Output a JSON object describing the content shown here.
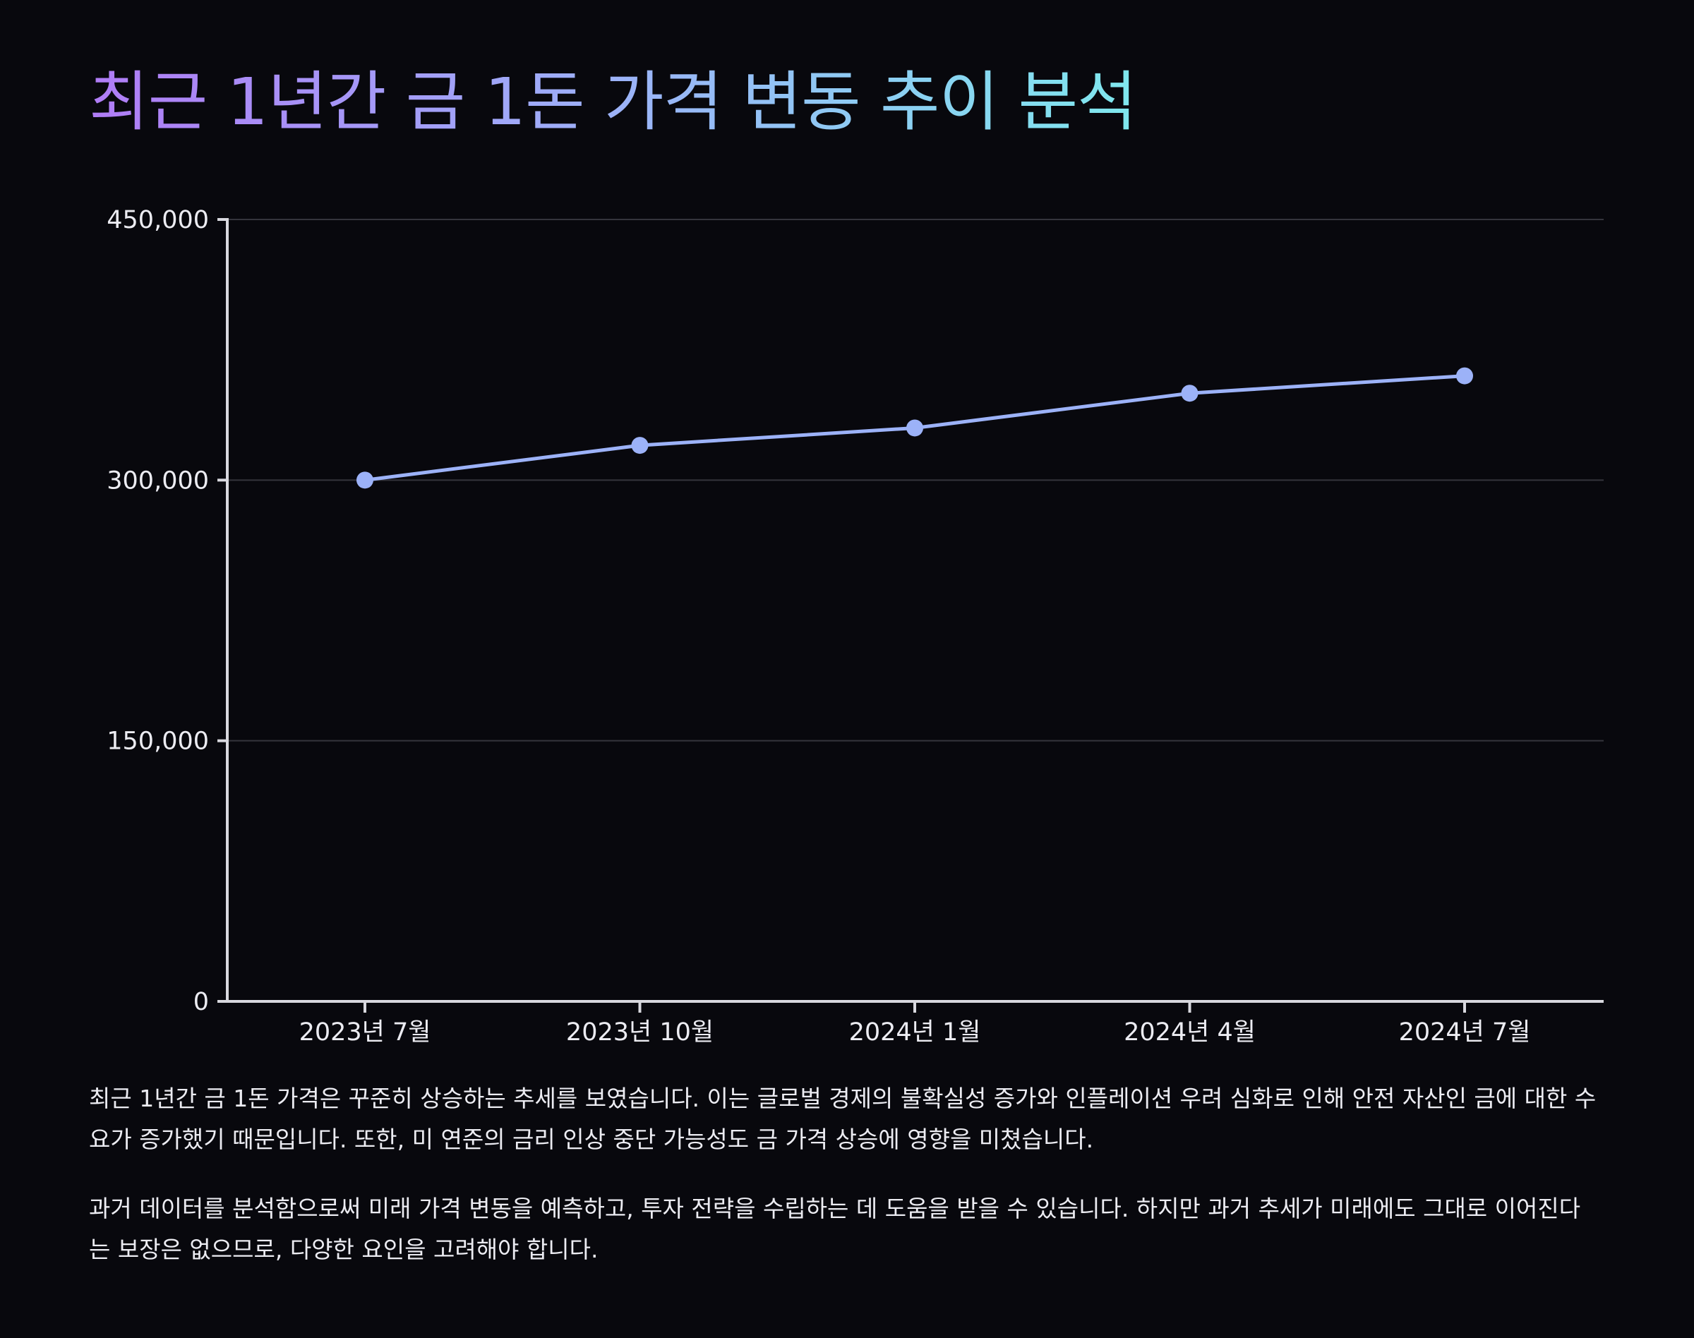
{
  "colors": {
    "background": "#08080d",
    "line": "#9cb2f8",
    "axis": "#d8d8de",
    "grid": "#34343c",
    "title_gradient": [
      "#b07cf6",
      "#9cb2f8",
      "#7fe8ee"
    ]
  },
  "chart_data": {
    "type": "line",
    "title": "최근 1년간 금 1돈 가격 변동 추이 분석",
    "xlabel": "",
    "ylabel": "",
    "categories": [
      "2023년 7월",
      "2023년 10월",
      "2024년 1월",
      "2024년 4월",
      "2024년 7월"
    ],
    "series": [
      {
        "values": [
          300000,
          320000,
          330000,
          350000,
          360000
        ],
        "color": "#9cb2f8"
      }
    ],
    "ylim": [
      0,
      450000
    ],
    "yticks": [
      0,
      150000,
      300000,
      450000
    ],
    "ytick_labels": [
      "0",
      "150,000",
      "300,000",
      "450,000"
    ],
    "grid": true,
    "legend": "none"
  },
  "description": {
    "paragraph_1": "최근 1년간 금 1돈 가격은 꾸준히 상승하는 추세를 보였습니다. 이는 글로벌 경제의 불확실성 증가와 인플레이션 우려 심화로 인해 안전 자산인 금에 대한 수요가 증가했기 때문입니다. 또한, 미 연준의 금리 인상 중단 가능성도 금 가격 상승에 영향을 미쳤습니다.",
    "paragraph_2": "과거 데이터를 분석함으로써 미래 가격 변동을 예측하고, 투자 전략을 수립하는 데 도움을 받을 수 있습니다. 하지만 과거 추세가 미래에도 그대로 이어진다는 보장은 없으므로, 다양한 요인을 고려해야 합니다."
  }
}
